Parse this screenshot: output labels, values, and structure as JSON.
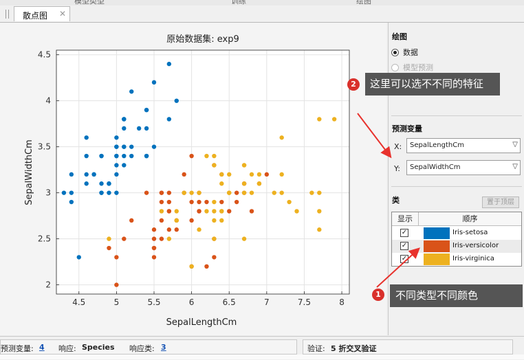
{
  "top_strip": {
    "items": [
      "模型类型",
      "训练",
      "绘图"
    ]
  },
  "tab": {
    "label": "散点图",
    "close": "✕"
  },
  "chart_data": {
    "type": "scatter",
    "title": "原始数据集: exp9",
    "xlabel": "SepalLengthCm",
    "ylabel": "SepalWidthCm",
    "xlim": [
      4.2,
      8.1
    ],
    "ylim": [
      1.9,
      4.55
    ],
    "xticks": [
      4.5,
      5,
      5.5,
      6,
      6.5,
      7,
      7.5,
      8
    ],
    "yticks": [
      2,
      2.5,
      3,
      3.5,
      4,
      4.5
    ],
    "grid": true,
    "series": [
      {
        "name": "Iris-setosa",
        "color": "#0072bd",
        "points": [
          [
            5.1,
            3.5
          ],
          [
            4.9,
            3.0
          ],
          [
            4.7,
            3.2
          ],
          [
            4.6,
            3.1
          ],
          [
            5.0,
            3.6
          ],
          [
            5.4,
            3.9
          ],
          [
            4.6,
            3.4
          ],
          [
            5.0,
            3.4
          ],
          [
            4.4,
            2.9
          ],
          [
            4.9,
            3.1
          ],
          [
            5.4,
            3.7
          ],
          [
            4.8,
            3.4
          ],
          [
            4.8,
            3.0
          ],
          [
            4.3,
            3.0
          ],
          [
            5.8,
            4.0
          ],
          [
            5.7,
            4.4
          ],
          [
            5.4,
            3.9
          ],
          [
            5.1,
            3.5
          ],
          [
            5.7,
            3.8
          ],
          [
            5.1,
            3.8
          ],
          [
            5.4,
            3.4
          ],
          [
            5.1,
            3.7
          ],
          [
            4.6,
            3.6
          ],
          [
            5.1,
            3.3
          ],
          [
            4.8,
            3.4
          ],
          [
            5.0,
            3.0
          ],
          [
            5.0,
            3.4
          ],
          [
            5.2,
            3.5
          ],
          [
            5.2,
            3.4
          ],
          [
            4.7,
            3.2
          ],
          [
            4.8,
            3.1
          ],
          [
            5.4,
            3.4
          ],
          [
            5.2,
            4.1
          ],
          [
            5.5,
            4.2
          ],
          [
            4.9,
            3.1
          ],
          [
            5.0,
            3.2
          ],
          [
            5.5,
            3.5
          ],
          [
            4.9,
            3.1
          ],
          [
            4.4,
            3.0
          ],
          [
            5.1,
            3.4
          ],
          [
            5.0,
            3.5
          ],
          [
            4.5,
            2.3
          ],
          [
            4.4,
            3.2
          ],
          [
            5.0,
            3.5
          ],
          [
            5.1,
            3.8
          ],
          [
            4.8,
            3.0
          ],
          [
            5.1,
            3.8
          ],
          [
            4.6,
            3.2
          ],
          [
            5.3,
            3.7
          ],
          [
            5.0,
            3.3
          ]
        ]
      },
      {
        "name": "Iris-versicolor",
        "color": "#d95319",
        "points": [
          [
            7.0,
            3.2
          ],
          [
            6.4,
            3.2
          ],
          [
            6.9,
            3.1
          ],
          [
            5.5,
            2.3
          ],
          [
            6.5,
            2.8
          ],
          [
            5.7,
            2.8
          ],
          [
            6.3,
            3.3
          ],
          [
            4.9,
            2.4
          ],
          [
            6.6,
            2.9
          ],
          [
            5.2,
            2.7
          ],
          [
            5.0,
            2.0
          ],
          [
            5.9,
            3.0
          ],
          [
            6.0,
            2.2
          ],
          [
            6.1,
            2.9
          ],
          [
            5.6,
            2.9
          ],
          [
            6.7,
            3.1
          ],
          [
            5.6,
            3.0
          ],
          [
            5.8,
            2.7
          ],
          [
            6.2,
            2.2
          ],
          [
            5.6,
            2.5
          ],
          [
            5.9,
            3.2
          ],
          [
            6.1,
            2.8
          ],
          [
            6.3,
            2.5
          ],
          [
            6.1,
            2.8
          ],
          [
            6.4,
            2.9
          ],
          [
            6.6,
            3.0
          ],
          [
            6.8,
            2.8
          ],
          [
            6.7,
            3.0
          ],
          [
            6.0,
            2.9
          ],
          [
            5.7,
            2.6
          ],
          [
            5.5,
            2.4
          ],
          [
            5.5,
            2.4
          ],
          [
            5.8,
            2.7
          ],
          [
            6.0,
            2.7
          ],
          [
            5.4,
            3.0
          ],
          [
            6.0,
            3.4
          ],
          [
            6.7,
            3.1
          ],
          [
            6.3,
            2.3
          ],
          [
            5.6,
            3.0
          ],
          [
            5.5,
            2.5
          ],
          [
            5.5,
            2.6
          ],
          [
            6.1,
            3.0
          ],
          [
            5.8,
            2.6
          ],
          [
            5.0,
            2.3
          ],
          [
            5.6,
            2.7
          ],
          [
            5.7,
            3.0
          ],
          [
            5.7,
            2.9
          ],
          [
            6.2,
            2.9
          ],
          [
            5.1,
            2.5
          ],
          [
            5.7,
            2.8
          ]
        ]
      },
      {
        "name": "Iris-virginica",
        "color": "#edb120",
        "points": [
          [
            6.3,
            3.3
          ],
          [
            5.8,
            2.7
          ],
          [
            7.1,
            3.0
          ],
          [
            6.3,
            2.9
          ],
          [
            6.5,
            3.0
          ],
          [
            7.6,
            3.0
          ],
          [
            4.9,
            2.5
          ],
          [
            7.3,
            2.9
          ],
          [
            6.7,
            2.5
          ],
          [
            7.2,
            3.6
          ],
          [
            6.5,
            3.2
          ],
          [
            6.4,
            2.7
          ],
          [
            6.8,
            3.0
          ],
          [
            5.7,
            2.5
          ],
          [
            5.8,
            2.8
          ],
          [
            6.4,
            3.2
          ],
          [
            6.5,
            3.0
          ],
          [
            7.7,
            3.8
          ],
          [
            7.7,
            2.6
          ],
          [
            6.0,
            2.2
          ],
          [
            6.9,
            3.2
          ],
          [
            5.6,
            2.8
          ],
          [
            7.7,
            2.8
          ],
          [
            6.3,
            2.7
          ],
          [
            6.7,
            3.3
          ],
          [
            7.2,
            3.2
          ],
          [
            6.2,
            2.8
          ],
          [
            6.1,
            3.0
          ],
          [
            6.4,
            2.8
          ],
          [
            7.2,
            3.0
          ],
          [
            7.4,
            2.8
          ],
          [
            7.9,
            3.8
          ],
          [
            6.4,
            2.8
          ],
          [
            6.3,
            2.8
          ],
          [
            6.1,
            2.6
          ],
          [
            7.7,
            3.0
          ],
          [
            6.3,
            3.4
          ],
          [
            6.4,
            3.1
          ],
          [
            6.0,
            3.0
          ],
          [
            6.9,
            3.1
          ],
          [
            6.7,
            3.1
          ],
          [
            6.9,
            3.1
          ],
          [
            5.8,
            2.7
          ],
          [
            6.8,
            3.2
          ],
          [
            6.7,
            3.3
          ],
          [
            6.7,
            3.0
          ],
          [
            6.3,
            2.5
          ],
          [
            6.5,
            3.0
          ],
          [
            6.2,
            3.4
          ],
          [
            5.9,
            3.0
          ]
        ]
      }
    ]
  },
  "panel": {
    "plot_title": "绘图",
    "radio_data": "数据",
    "radio_model": "模型预测",
    "predict_title": "预测变量",
    "x_label": "X:",
    "x_value": "SepalLengthCm",
    "y_label": "Y:",
    "y_value": "SepalWidthCm",
    "class_title": "类",
    "top_button": "置于顶层",
    "table_show": "显示",
    "table_order": "顺序",
    "classes": [
      {
        "name": "Iris-setosa",
        "color": "#0072bd",
        "checked": "✓"
      },
      {
        "name": "Iris-versicolor",
        "color": "#d95319",
        "checked": "✓"
      },
      {
        "name": "Iris-virginica",
        "color": "#edb120",
        "checked": "✓"
      }
    ]
  },
  "status": {
    "predictors_label": "预测变量: ",
    "predictors_value": "4",
    "response_label": "响应: ",
    "response_value": "Species",
    "classes_label": "响应类: ",
    "classes_value": "3",
    "validation_label": "验证: ",
    "validation_value": "5 折交叉验证"
  },
  "callouts": {
    "c2_num": "2",
    "c2_text": "这里可以选不不同的特征",
    "c1_num": "1",
    "c1_text": "不同类型不同颜色"
  }
}
